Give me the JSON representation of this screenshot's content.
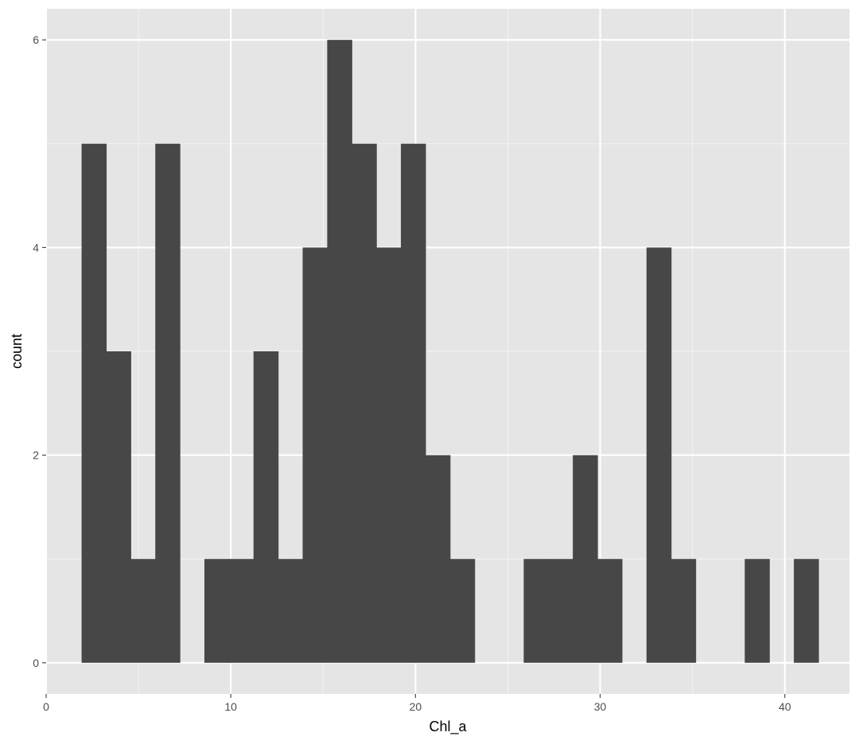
{
  "chart_data": {
    "type": "bar",
    "subtype": "histogram",
    "title": "",
    "xlabel": "Chl_a",
    "ylabel": "count",
    "xlim": [
      0,
      43.5
    ],
    "ylim": [
      -0.3,
      6.3
    ],
    "xticks": [
      0,
      10,
      20,
      30,
      40
    ],
    "yticks": [
      0,
      2,
      4,
      6
    ],
    "grid": true,
    "bin_width": 1.33,
    "bins": [
      {
        "start": 1.92,
        "count": 5
      },
      {
        "start": 3.25,
        "count": 3
      },
      {
        "start": 4.58,
        "count": 1
      },
      {
        "start": 5.91,
        "count": 5
      },
      {
        "start": 7.24,
        "count": 0
      },
      {
        "start": 8.57,
        "count": 1
      },
      {
        "start": 9.9,
        "count": 1
      },
      {
        "start": 11.23,
        "count": 3
      },
      {
        "start": 12.56,
        "count": 1
      },
      {
        "start": 13.89,
        "count": 4
      },
      {
        "start": 15.22,
        "count": 6
      },
      {
        "start": 16.55,
        "count": 5
      },
      {
        "start": 17.88,
        "count": 4
      },
      {
        "start": 19.21,
        "count": 5
      },
      {
        "start": 20.54,
        "count": 2
      },
      {
        "start": 21.87,
        "count": 1
      },
      {
        "start": 23.2,
        "count": 0
      },
      {
        "start": 24.53,
        "count": 0
      },
      {
        "start": 25.86,
        "count": 1
      },
      {
        "start": 27.19,
        "count": 1
      },
      {
        "start": 28.52,
        "count": 2
      },
      {
        "start": 29.85,
        "count": 1
      },
      {
        "start": 31.18,
        "count": 0
      },
      {
        "start": 32.51,
        "count": 4
      },
      {
        "start": 33.84,
        "count": 1
      },
      {
        "start": 35.17,
        "count": 0
      },
      {
        "start": 36.5,
        "count": 0
      },
      {
        "start": 37.83,
        "count": 1
      },
      {
        "start": 39.16,
        "count": 0
      },
      {
        "start": 40.49,
        "count": 1
      }
    ],
    "colors": {
      "panel": "#e5e5e5",
      "grid_major": "#ffffff",
      "grid_minor": "#f2f2f2",
      "bar": "#474747",
      "tick": "#4d4d4d"
    }
  }
}
